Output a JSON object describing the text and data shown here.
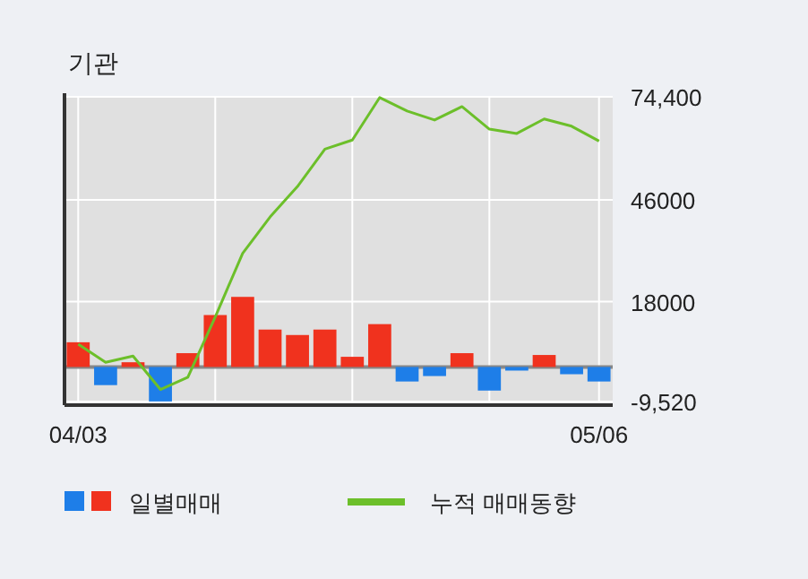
{
  "chart_data": {
    "type": "bar",
    "title": "기관",
    "categories": [
      "04/03",
      null,
      null,
      null,
      null,
      null,
      null,
      null,
      null,
      null,
      null,
      null,
      null,
      null,
      null,
      null,
      null,
      null,
      null,
      "05/06"
    ],
    "series": [
      {
        "name": "일별매매",
        "colors": [
          "#f0321e",
          "#1e7ee8",
          "#f0321e",
          "#1e7ee8",
          "#f0321e",
          "#f0321e",
          "#f0321e",
          "#f0321e",
          "#f0321e",
          "#f0321e",
          "#f0321e",
          "#f0321e",
          "#1e7ee8",
          "#1e7ee8",
          "#f0321e",
          "#1e7ee8",
          "#1e7ee8",
          "#f0321e",
          "#1e7ee8",
          "#1e7ee8"
        ],
        "values": [
          6800,
          -5000,
          1300,
          -9500,
          3800,
          14300,
          19300,
          10300,
          8800,
          10300,
          2800,
          11800,
          -4000,
          -2500,
          3800,
          -6500,
          -1000,
          3300,
          -2000,
          -4000
        ]
      },
      {
        "name": "누적 매매동향",
        "type": "line",
        "color": "#6cbf2a",
        "values": [
          6300,
          1300,
          3000,
          -6200,
          -2800,
          13800,
          31300,
          41300,
          49700,
          60000,
          62500,
          74200,
          70500,
          68000,
          71700,
          65500,
          64300,
          68300,
          66300,
          62200
        ]
      }
    ],
    "ylim": [
      -9520,
      74400
    ],
    "yticks": [
      {
        "value": 74400,
        "label": "74,400"
      },
      46000,
      18000,
      {
        "value": -9520,
        "label": "-9,520"
      }
    ],
    "ref_lines": [
      {
        "axis": "y",
        "value": 0,
        "color": "#888888"
      }
    ],
    "grid": true,
    "legend": "bottom"
  }
}
